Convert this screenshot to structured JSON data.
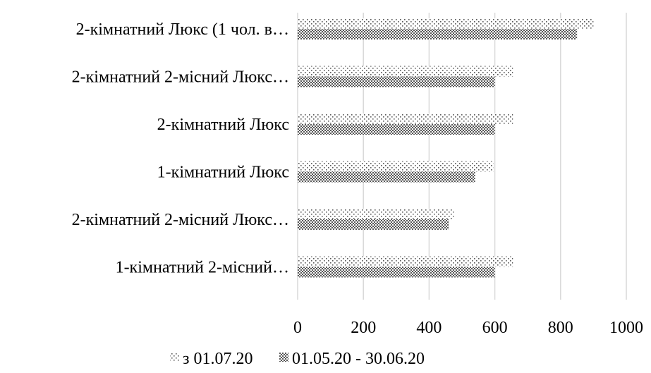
{
  "chart_data": {
    "type": "bar",
    "orientation": "horizontal",
    "categories": [
      "2-кімнатний Люкс (1 чол. в…",
      "2-кімнатний 2-місний Люкс…",
      "2-кімнатний Люкс",
      "1-кімнатний Люкс",
      "2-кімнатний 2-місний Люкс…",
      "1-кімнатний 2-місний…"
    ],
    "series": [
      {
        "name": "з 01.07.20",
        "values": [
          900,
          655,
          655,
          595,
          475,
          655
        ],
        "pattern": "dots"
      },
      {
        "name": "01.05.20 - 30.06.20",
        "values": [
          850,
          600,
          600,
          540,
          460,
          600
        ],
        "pattern": "checker"
      }
    ],
    "xlim": [
      0,
      1000
    ],
    "ticks": [
      0,
      200,
      400,
      600,
      800,
      1000
    ],
    "tick_labels": [
      "0",
      "200",
      "400",
      "600",
      "800",
      "1000"
    ],
    "grid": true,
    "legend_position": "bottom",
    "title": "",
    "xlabel": "",
    "ylabel": "",
    "colors": {
      "bar": "#595959",
      "grid": "#d9d9d9"
    }
  }
}
